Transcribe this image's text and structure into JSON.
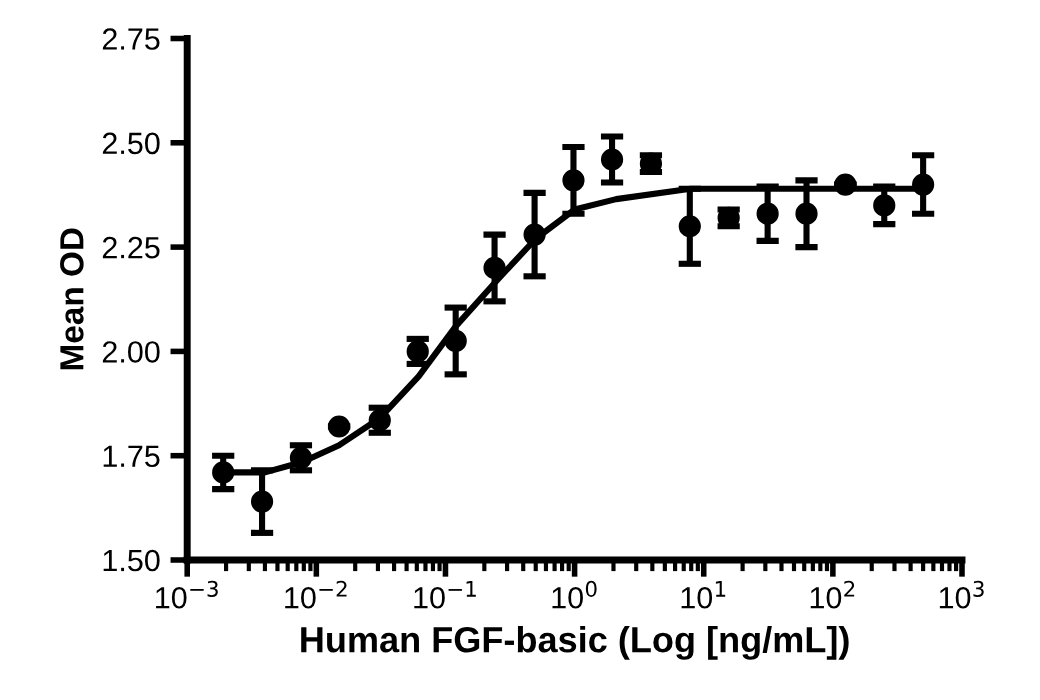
{
  "chart_data": {
    "type": "scatter",
    "xlabel": "Human FGF-basic (Log [ng/mL])",
    "ylabel": "Mean OD",
    "log": "x",
    "xlim": [
      0.001,
      1000
    ],
    "xticks": [
      {
        "value": 0.001,
        "label": "10$^{−3}$"
      },
      {
        "value": 0.01,
        "label": "10$^{−2}$"
      },
      {
        "value": 0.1,
        "label": "10$^{−1}$"
      },
      {
        "value": 1,
        "label": "10$^{0}$"
      },
      {
        "value": 10,
        "label": "10$^{1}$"
      },
      {
        "value": 100,
        "label": "10$^{2}$"
      },
      {
        "value": 1000,
        "label": "10$^{3}$"
      }
    ],
    "ylim": [
      1.5,
      2.75
    ],
    "yticks": [
      {
        "value": 1.5,
        "label": "1.50"
      },
      {
        "value": 1.75,
        "label": "1.75"
      },
      {
        "value": 2.0,
        "label": "2.00"
      },
      {
        "value": 2.25,
        "label": "2.25"
      },
      {
        "value": 2.5,
        "label": "2.50"
      },
      {
        "value": 2.75,
        "label": "2.75"
      }
    ],
    "series": [
      {
        "color": "#000000",
        "marker": "circle",
        "x": [
          0.0019,
          0.0038,
          0.0076,
          0.015,
          0.031,
          0.061,
          0.12,
          0.24,
          0.49,
          0.98,
          1.95,
          3.9,
          7.8,
          15.6,
          31.25,
          62.5,
          125,
          250,
          500
        ],
        "values": [
          1.71,
          1.64,
          1.745,
          1.82,
          1.835,
          2.0,
          2.025,
          2.2,
          2.28,
          2.41,
          2.46,
          2.45,
          2.3,
          2.32,
          2.33,
          2.33,
          2.4,
          2.35,
          2.4
        ],
        "errors": [
          0.04,
          0.075,
          0.03,
          null,
          0.03,
          0.03,
          0.08,
          0.08,
          0.1,
          0.08,
          0.055,
          0.02,
          0.09,
          0.02,
          0.065,
          0.08,
          null,
          0.045,
          0.07
        ]
      },
      {
        "type": "line",
        "color": "#000000",
        "marker": "none",
        "line_style": "solid",
        "x": [
          0.0019,
          0.004,
          0.0078,
          0.015,
          0.031,
          0.062,
          0.12,
          0.25,
          0.5,
          1.0,
          2.1,
          7.9,
          500
        ],
        "values": [
          1.71,
          1.71,
          1.735,
          1.775,
          1.84,
          1.94,
          2.06,
          2.17,
          2.27,
          2.34,
          2.365,
          2.39,
          2.39
        ]
      }
    ]
  }
}
